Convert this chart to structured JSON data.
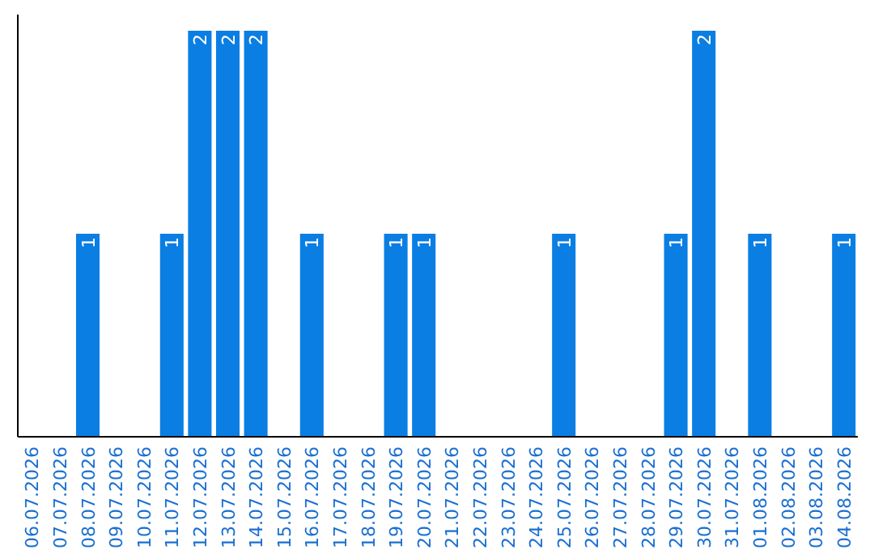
{
  "chart_data": {
    "type": "bar",
    "categories": [
      "06.07.2026",
      "07.07.2026",
      "08.07.2026",
      "09.07.2026",
      "10.07.2026",
      "11.07.2026",
      "12.07.2026",
      "13.07.2026",
      "14.07.2026",
      "15.07.2026",
      "16.07.2026",
      "17.07.2026",
      "18.07.2026",
      "19.07.2026",
      "20.07.2026",
      "21.07.2026",
      "22.07.2026",
      "23.07.2026",
      "24.07.2026",
      "25.07.2026",
      "26.07.2026",
      "27.07.2026",
      "28.07.2026",
      "29.07.2026",
      "30.07.2026",
      "31.07.2026",
      "01.08.2026",
      "02.08.2026",
      "03.08.2026",
      "04.08.2026"
    ],
    "values": [
      0,
      0,
      1,
      0,
      0,
      1,
      2,
      2,
      2,
      0,
      1,
      0,
      0,
      1,
      1,
      0,
      0,
      0,
      0,
      1,
      0,
      0,
      0,
      1,
      2,
      0,
      1,
      0,
      0,
      1
    ],
    "value_labels": [
      null,
      null,
      "1",
      null,
      null,
      "1",
      "2",
      "2",
      "2",
      null,
      "1",
      null,
      null,
      "1",
      "1",
      null,
      null,
      null,
      null,
      "1",
      null,
      null,
      null,
      "1",
      "2",
      null,
      "1",
      null,
      null,
      "1"
    ],
    "color": "#0a7ee3",
    "ylim": [
      0,
      2
    ],
    "tick_labels": "x"
  }
}
